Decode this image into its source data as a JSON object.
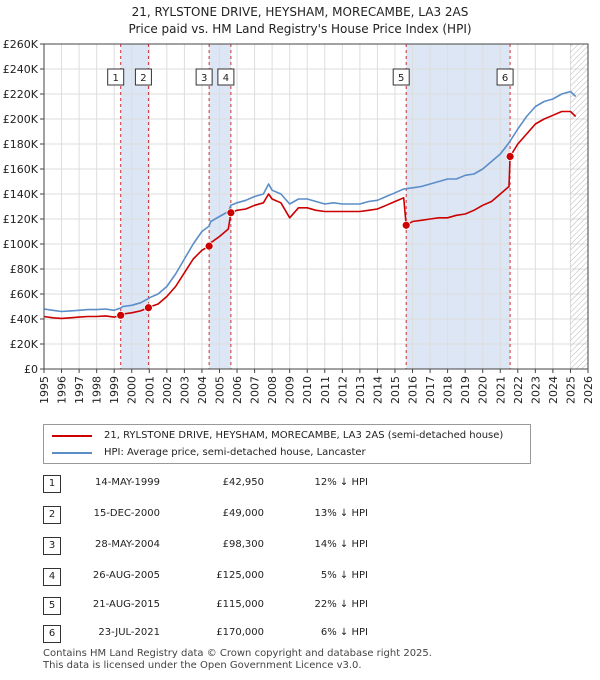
{
  "title_line1": "21, RYLSTONE DRIVE, HEYSHAM, MORECAMBE, LA3 2AS",
  "title_line2": "Price paid vs. HM Land Registry's House Price Index (HPI)",
  "colors": {
    "property": "#cc0000",
    "hpi": "#5b8ec9",
    "band": "#dde6f5",
    "grid": "#dddddd"
  },
  "legend": {
    "property_label": "21, RYLSTONE DRIVE, HEYSHAM, MORECAMBE, LA3 2AS (semi-detached house)",
    "hpi_label": "HPI: Average price, semi-detached house, Lancaster"
  },
  "transactions": [
    {
      "num": "1",
      "date": "14-MAY-1999",
      "price": "£42,950",
      "hpi": "12% ↓ HPI"
    },
    {
      "num": "2",
      "date": "15-DEC-2000",
      "price": "£49,000",
      "hpi": "13% ↓ HPI"
    },
    {
      "num": "3",
      "date": "28-MAY-2004",
      "price": "£98,300",
      "hpi": "14% ↓ HPI"
    },
    {
      "num": "4",
      "date": "26-AUG-2005",
      "price": "£125,000",
      "hpi": "5% ↓ HPI"
    },
    {
      "num": "5",
      "date": "21-AUG-2015",
      "price": "£115,000",
      "hpi": "22% ↓ HPI"
    },
    {
      "num": "6",
      "date": "23-JUL-2021",
      "price": "£170,000",
      "hpi": "6% ↓ HPI"
    }
  ],
  "footer_line1": "Contains HM Land Registry data © Crown copyright and database right 2025.",
  "footer_line2": "This data is licensed under the Open Government Licence v3.0.",
  "chart_data": {
    "type": "line",
    "xlim": [
      1995,
      2026
    ],
    "ylim": [
      0,
      260000
    ],
    "x_ticks": [
      1995,
      1996,
      1997,
      1998,
      1999,
      2000,
      2001,
      2002,
      2003,
      2004,
      2005,
      2006,
      2007,
      2008,
      2009,
      2010,
      2011,
      2012,
      2013,
      2014,
      2015,
      2016,
      2017,
      2018,
      2019,
      2020,
      2021,
      2022,
      2023,
      2024,
      2025,
      2026
    ],
    "y_ticks": [
      {
        "value": 0,
        "label": "£0"
      },
      {
        "value": 20000,
        "label": "£20K"
      },
      {
        "value": 40000,
        "label": "£40K"
      },
      {
        "value": 60000,
        "label": "£60K"
      },
      {
        "value": 80000,
        "label": "£80K"
      },
      {
        "value": 100000,
        "label": "£100K"
      },
      {
        "value": 120000,
        "label": "£120K"
      },
      {
        "value": 140000,
        "label": "£140K"
      },
      {
        "value": 160000,
        "label": "£160K"
      },
      {
        "value": 180000,
        "label": "£180K"
      },
      {
        "value": 200000,
        "label": "£200K"
      },
      {
        "value": 220000,
        "label": "£220K"
      },
      {
        "value": 240000,
        "label": "£240K"
      },
      {
        "value": 260000,
        "label": "£260K"
      }
    ],
    "grid": true,
    "bands": [
      [
        1999.37,
        2000.95
      ],
      [
        2004.41,
        2005.65
      ],
      [
        2015.64,
        2021.56
      ]
    ],
    "hatch_from": 2025.0,
    "sales": [
      {
        "label": "1",
        "x": 1999.37,
        "y": 42950
      },
      {
        "label": "2",
        "x": 2000.95,
        "y": 49000
      },
      {
        "label": "3",
        "x": 2004.41,
        "y": 98300
      },
      {
        "label": "4",
        "x": 2005.65,
        "y": 125000
      },
      {
        "label": "5",
        "x": 2015.64,
        "y": 115000
      },
      {
        "label": "6",
        "x": 2021.56,
        "y": 170000
      }
    ],
    "series": [
      {
        "name": "HPI: Average price, semi-detached house, Lancaster",
        "x": [
          1995,
          1995.5,
          1996,
          1996.5,
          1997,
          1997.5,
          1998,
          1998.5,
          1999,
          1999.37,
          1999.5,
          2000,
          2000.5,
          2000.95,
          2001,
          2001.5,
          2002,
          2002.5,
          2003,
          2003.5,
          2004,
          2004.41,
          2004.5,
          2005,
          2005.5,
          2005.65,
          2006,
          2006.5,
          2007,
          2007.5,
          2007.8,
          2008,
          2008.5,
          2009,
          2009.5,
          2010,
          2010.5,
          2011,
          2011.5,
          2012,
          2012.5,
          2013,
          2013.5,
          2014,
          2014.5,
          2015,
          2015.5,
          2016,
          2016.5,
          2017,
          2017.5,
          2018,
          2018.5,
          2019,
          2019.5,
          2020,
          2020.5,
          2021,
          2021.5,
          2022,
          2022.5,
          2023,
          2023.5,
          2024,
          2024.5,
          2025,
          2025.3
        ],
        "y": [
          48000,
          47000,
          46000,
          46500,
          47000,
          47500,
          47500,
          48000,
          47000,
          48800,
          50000,
          51000,
          53000,
          56300,
          57000,
          60000,
          66000,
          76000,
          88000,
          100000,
          110000,
          114300,
          118000,
          122000,
          126000,
          131000,
          133000,
          135000,
          138000,
          140000,
          148000,
          143000,
          140000,
          132000,
          136000,
          136000,
          134000,
          132000,
          133000,
          132000,
          132000,
          132000,
          134000,
          135000,
          138000,
          141000,
          144000,
          145000,
          146000,
          148000,
          150000,
          152000,
          152000,
          155000,
          156000,
          160000,
          166000,
          172000,
          181000,
          192000,
          202000,
          210000,
          214000,
          216000,
          220000,
          222000,
          218000
        ]
      },
      {
        "name": "21, RYLSTONE DRIVE, HEYSHAM, MORECAMBE, LA3 2AS (semi-detached house)",
        "x": [
          1995,
          1995.5,
          1996,
          1996.5,
          1997,
          1997.5,
          1998,
          1998.5,
          1999,
          1999.37,
          1999.5,
          2000,
          2000.5,
          2000.95,
          2001,
          2001.5,
          2002,
          2002.5,
          2003,
          2003.5,
          2004,
          2004.41,
          2004.5,
          2005,
          2005.5,
          2005.65,
          2006,
          2006.5,
          2007,
          2007.5,
          2007.8,
          2008,
          2008.5,
          2009,
          2009.5,
          2010,
          2010.5,
          2011,
          2011.5,
          2012,
          2012.5,
          2013,
          2013.5,
          2014,
          2014.5,
          2015,
          2015.5,
          2015.64,
          2016,
          2016.5,
          2017,
          2017.5,
          2018,
          2018.5,
          2019,
          2019.5,
          2020,
          2020.5,
          2021,
          2021.5,
          2021.56,
          2022,
          2022.5,
          2023,
          2023.5,
          2024,
          2024.5,
          2025,
          2025.3
        ],
        "y": [
          42000,
          41000,
          40500,
          41000,
          41500,
          42000,
          42000,
          42500,
          41500,
          42950,
          44000,
          45000,
          46500,
          49000,
          49500,
          52000,
          58000,
          66000,
          77000,
          88000,
          95000,
          98300,
          101000,
          106000,
          112000,
          125000,
          127000,
          128000,
          131000,
          133000,
          140000,
          136000,
          133000,
          121000,
          129000,
          129000,
          127000,
          126000,
          126000,
          126000,
          126000,
          126000,
          127000,
          128000,
          131000,
          134000,
          137000,
          115000,
          118000,
          119000,
          120000,
          121000,
          121000,
          123000,
          124000,
          127000,
          131000,
          134000,
          140000,
          146000,
          170000,
          180000,
          188000,
          196000,
          200000,
          203000,
          206000,
          206000,
          202000
        ]
      }
    ]
  }
}
